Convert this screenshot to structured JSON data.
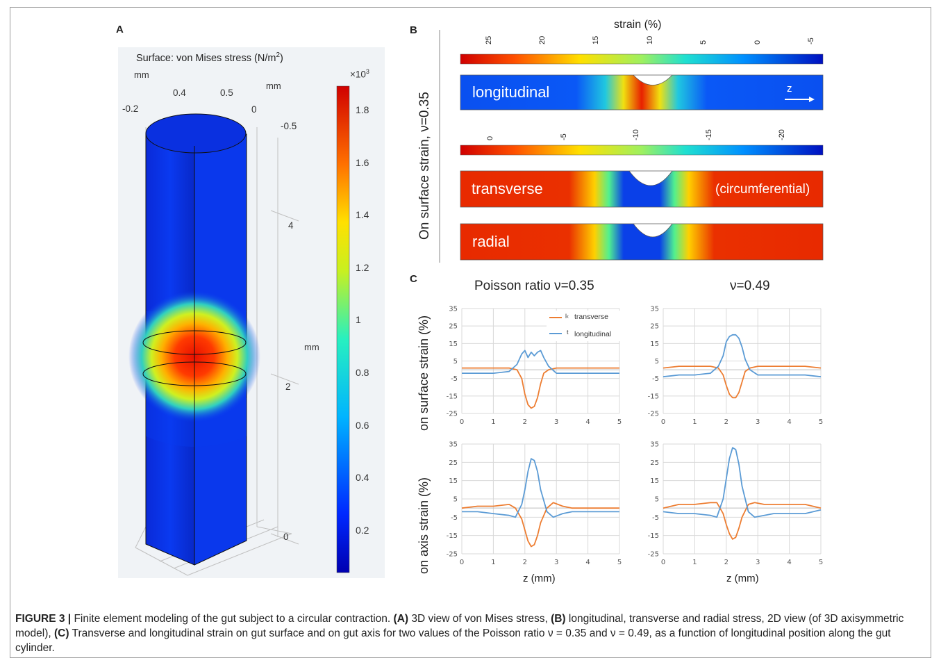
{
  "panels": {
    "a": {
      "letter": "A",
      "title": "Surface: von Mises stress (N/m",
      "title_sup": "2",
      "title_end": ")",
      "axis_top_mm": "mm",
      "axis_top_ticks": [
        "-0.2",
        "0.4",
        "0.5",
        "0"
      ],
      "axis_right_mm": "mm",
      "axis_right_tick": "-0.5",
      "axis_z_ticks": [
        "4",
        "2",
        "0"
      ],
      "axis_z_mm": "mm",
      "colorbar_exponent": "×10",
      "colorbar_exponent_sup": "3",
      "colorbar_ticks": [
        "1.8",
        "1.6",
        "1.4",
        "1.2",
        "1",
        "0.8",
        "0.6",
        "0.4",
        "0.2"
      ]
    },
    "b": {
      "letter": "B",
      "side_label": "On surface strain, ν=0.35",
      "strain_title": "strain (%)",
      "colorbar1_ticks": [
        "25",
        "20",
        "15",
        "10",
        "5",
        "0",
        "-5"
      ],
      "colorbar2_ticks": [
        "0",
        "-5",
        "-10",
        "-15",
        "-20"
      ],
      "longitudinal_label": "longitudinal",
      "z_label": "z",
      "transverse_label": "transverse",
      "circumferential_label": "(circumferential)",
      "radial_label": "radial"
    },
    "c": {
      "letter": "C",
      "title_left": "Poisson ratio ν=0.35",
      "title_right": "ν=0.49",
      "ylabel_top": "on surface strain (%)",
      "ylabel_bottom": "on axis strain (%)",
      "xlabel": "z (mm)",
      "legend_transverse_prefix": "l‹",
      "legend_transverse": "transverse",
      "legend_longitudinal_prefix": "t",
      "legend_longitudinal": "longitudinal"
    }
  },
  "chart_data": [
    {
      "type": "line",
      "panel": "C top-left (surface, ν=0.35)",
      "x": [
        0,
        0.5,
        1,
        1.5,
        1.75,
        1.9,
        2.0,
        2.1,
        2.2,
        2.3,
        2.4,
        2.5,
        2.6,
        2.75,
        3.0,
        3.5,
        4,
        4.5,
        5
      ],
      "series": [
        {
          "name": "transverse",
          "color": "#ed7d31",
          "values": [
            1,
            1,
            1,
            1,
            0,
            -5,
            -14,
            -20,
            -22,
            -21,
            -16,
            -8,
            -2,
            0,
            1,
            1,
            1,
            1,
            1
          ]
        },
        {
          "name": "longitudinal",
          "color": "#5b9bd5",
          "values": [
            -2,
            -2,
            -2,
            -1,
            3,
            9,
            11,
            7,
            10,
            8,
            10,
            11,
            7,
            2,
            -2,
            -2,
            -2,
            -2,
            -2
          ]
        }
      ],
      "xlim": [
        0,
        5
      ],
      "ylim": [
        -25,
        35
      ],
      "yticks": [
        35,
        25,
        15,
        5,
        -5,
        -15,
        -25
      ],
      "xticks": [
        0,
        1,
        2,
        3,
        4,
        5
      ],
      "grid": true,
      "legend": "top-right"
    },
    {
      "type": "line",
      "panel": "C top-right (surface, ν=0.49)",
      "x": [
        0,
        0.5,
        1,
        1.5,
        1.75,
        1.9,
        2.0,
        2.1,
        2.2,
        2.3,
        2.4,
        2.5,
        2.6,
        2.75,
        3.0,
        3.5,
        4,
        4.5,
        5
      ],
      "series": [
        {
          "name": "transverse",
          "color": "#ed7d31",
          "values": [
            1,
            2,
            2,
            2,
            1,
            -3,
            -9,
            -14,
            -16,
            -16,
            -13,
            -7,
            -1,
            1,
            2,
            2,
            2,
            2,
            1
          ]
        },
        {
          "name": "longitudinal",
          "color": "#5b9bd5",
          "values": [
            -4,
            -3,
            -3,
            -2,
            2,
            8,
            16,
            19,
            20,
            20,
            18,
            13,
            6,
            0,
            -3,
            -3,
            -3,
            -3,
            -4
          ]
        }
      ],
      "xlim": [
        0,
        5
      ],
      "ylim": [
        -25,
        35
      ],
      "yticks": [
        35,
        25,
        15,
        5,
        -5,
        -15,
        -25
      ],
      "xticks": [
        0,
        1,
        2,
        3,
        4,
        5
      ],
      "grid": true
    },
    {
      "type": "line",
      "panel": "C bottom-left (axis, ν=0.35)",
      "x": [
        0,
        0.5,
        1,
        1.5,
        1.7,
        1.9,
        2.0,
        2.1,
        2.2,
        2.3,
        2.4,
        2.5,
        2.7,
        2.9,
        3.2,
        3.5,
        4,
        4.5,
        5
      ],
      "series": [
        {
          "name": "transverse",
          "color": "#ed7d31",
          "values": [
            0,
            1,
            1,
            2,
            0,
            -6,
            -12,
            -18,
            -21,
            -20,
            -15,
            -8,
            0,
            3,
            1,
            0,
            0,
            0,
            0
          ]
        },
        {
          "name": "longitudinal",
          "color": "#5b9bd5",
          "values": [
            -2,
            -2,
            -3,
            -4,
            -5,
            2,
            10,
            20,
            27,
            26,
            20,
            10,
            -2,
            -5,
            -3,
            -2,
            -2,
            -2,
            -2
          ]
        }
      ],
      "xlim": [
        0,
        5
      ],
      "ylim": [
        -25,
        35
      ],
      "yticks": [
        35,
        25,
        15,
        5,
        -5,
        -15,
        -25
      ],
      "xticks": [
        0,
        1,
        2,
        3,
        4,
        5
      ],
      "xlabel": "z (mm)",
      "grid": true
    },
    {
      "type": "line",
      "panel": "C bottom-right (axis, ν=0.49)",
      "x": [
        0,
        0.5,
        1,
        1.5,
        1.7,
        1.9,
        2.0,
        2.1,
        2.2,
        2.3,
        2.4,
        2.5,
        2.7,
        2.9,
        3.2,
        3.5,
        4,
        4.5,
        5
      ],
      "series": [
        {
          "name": "transverse",
          "color": "#ed7d31",
          "values": [
            0,
            2,
            2,
            3,
            3,
            -3,
            -9,
            -14,
            -17,
            -16,
            -11,
            -5,
            2,
            3,
            2,
            2,
            2,
            2,
            0
          ]
        },
        {
          "name": "longitudinal",
          "color": "#5b9bd5",
          "values": [
            -2,
            -3,
            -3,
            -4,
            -5,
            5,
            16,
            27,
            33,
            32,
            24,
            12,
            -2,
            -5,
            -4,
            -3,
            -3,
            -3,
            -1
          ]
        }
      ],
      "xlim": [
        0,
        5
      ],
      "ylim": [
        -25,
        35
      ],
      "yticks": [
        35,
        25,
        15,
        5,
        -5,
        -15,
        -25
      ],
      "xticks": [
        0,
        1,
        2,
        3,
        4,
        5
      ],
      "xlabel": "z (mm)",
      "grid": true
    }
  ],
  "caption": {
    "label": "FIGURE 3 |",
    "intro": " Finite element modeling of the gut subject to a circular contraction. ",
    "a_ref": "(A)",
    "a_text": " 3D view of von Mises stress, ",
    "b_ref": "(B)",
    "b_text": " longitudinal, transverse and radial stress, 2D view (of 3D axisymmetric model), ",
    "c_ref": "(C)",
    "c_text": " Transverse and longitudinal strain on gut surface and on gut axis for two values of the Poisson ratio ν = 0.35 and ν = 0.49, as a function of longitudinal position along the gut cylinder."
  }
}
